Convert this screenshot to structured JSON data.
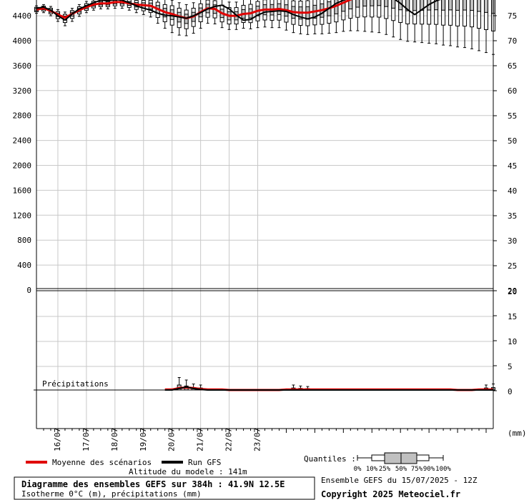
{
  "chart_data": {
    "type": "box",
    "title": "Diagramme des ensembles GEFS sur 384h : 41.9N 12.5E",
    "subtitle": "Isotherme 0°C (m), précipitations (mm)",
    "model_altitude": "Altitude du modele : 141m",
    "run_info": "Ensemble GEFS du 15/07/2025 - 12Z",
    "copyright": "Copyright 2025 Meteociel.fr",
    "precip_label": "Précipitations",
    "units_label": "(mm)",
    "x_dates": [
      "16/07",
      "17/07",
      "18/07",
      "19/07",
      "20/07",
      "21/07",
      "22/07",
      "23/07"
    ],
    "x_range": [
      0,
      384
    ],
    "left_ticks": [
      "4400",
      "4000",
      "3600",
      "3200",
      "2800",
      "2400",
      "2000",
      "1600",
      "1200",
      "800",
      "400",
      "0"
    ],
    "right_ticks_upper": [
      "75",
      "70",
      "65",
      "60",
      "55",
      "50",
      "45",
      "40",
      "35",
      "30",
      "25",
      "20"
    ],
    "right_ticks_lower": [
      "20",
      "15",
      "10",
      "5",
      "0"
    ],
    "freezing_level": {
      "hours": [
        0,
        6,
        12,
        18,
        24,
        30,
        36,
        42,
        48,
        54,
        60,
        66,
        72,
        78,
        84,
        90,
        96,
        102,
        108,
        114,
        120,
        126,
        132,
        138,
        144,
        150,
        156,
        162,
        168,
        174,
        180,
        186,
        192,
        198,
        204,
        210,
        216,
        222,
        228,
        234,
        240,
        246,
        252,
        258,
        264,
        270,
        276,
        282,
        288,
        294,
        300,
        306,
        312,
        318,
        324,
        330,
        336,
        342,
        348,
        354,
        360,
        366,
        372,
        378,
        384
      ],
      "mean": [
        4500,
        4520,
        4480,
        4420,
        4370,
        4430,
        4490,
        4540,
        4580,
        4600,
        4600,
        4620,
        4620,
        4600,
        4580,
        4570,
        4560,
        4510,
        4460,
        4430,
        4390,
        4360,
        4390,
        4460,
        4520,
        4510,
        4440,
        4400,
        4400,
        4430,
        4440,
        4480,
        4500,
        4500,
        4510,
        4490,
        4460,
        4450,
        4450,
        4470,
        4490,
        4520,
        4560,
        4610,
        4660,
        4700,
        4730,
        4740,
        4750,
        4740,
        4720,
        4700,
        4690,
        4700,
        4710,
        4720,
        4730,
        4730,
        4740,
        4740,
        4750,
        4750,
        4740,
        4730,
        4720
      ],
      "run": [
        4520,
        4540,
        4490,
        4400,
        4330,
        4430,
        4510,
        4560,
        4610,
        4650,
        4640,
        4660,
        4650,
        4610,
        4560,
        4520,
        4490,
        4440,
        4410,
        4400,
        4380,
        4360,
        4400,
        4450,
        4510,
        4550,
        4570,
        4510,
        4410,
        4330,
        4340,
        4410,
        4460,
        4470,
        4480,
        4470,
        4420,
        4380,
        4350,
        4380,
        4440,
        4520,
        4600,
        4650,
        4700,
        4730,
        4760,
        4780,
        4770,
        4730,
        4680,
        4600,
        4500,
        4420,
        4500,
        4580,
        4640,
        4680,
        4710,
        4730,
        4740,
        4750,
        4760,
        4750,
        4740
      ],
      "spread_low": [
        60,
        70,
        80,
        110,
        130,
        120,
        100,
        90,
        90,
        90,
        90,
        100,
        100,
        110,
        130,
        150,
        180,
        230,
        260,
        300,
        300,
        280,
        270,
        260,
        240,
        240,
        230,
        220,
        220,
        230,
        250,
        270,
        280,
        290,
        300,
        320,
        330,
        340,
        350,
        360,
        380,
        400,
        430,
        460,
        500,
        540,
        580,
        600,
        620,
        640,
        660,
        680,
        700,
        720,
        740,
        760,
        780,
        800,
        820,
        840,
        860,
        880,
        900,
        920,
        940
      ],
      "spread_high": [
        60,
        60,
        70,
        80,
        90,
        90,
        90,
        90,
        90,
        90,
        90,
        90,
        90,
        100,
        110,
        130,
        150,
        180,
        200,
        220,
        220,
        220,
        220,
        220,
        220,
        220,
        220,
        220,
        220,
        230,
        240,
        250,
        260,
        270,
        280,
        290,
        300,
        310,
        320,
        330,
        340,
        350,
        360,
        370,
        380,
        390,
        400,
        410,
        420,
        430,
        440,
        450,
        460,
        470,
        480,
        490,
        500,
        510,
        520,
        530,
        540,
        550,
        560,
        570,
        580
      ]
    },
    "precipitation": {
      "hours": [
        108,
        114,
        120,
        126,
        132,
        138,
        144,
        150,
        156,
        162,
        168,
        174,
        180,
        186,
        192,
        198,
        204,
        210,
        216,
        222,
        228,
        234,
        240,
        246,
        252,
        258,
        264,
        270,
        276,
        282,
        288,
        294,
        300,
        306,
        312,
        318,
        324,
        330,
        336,
        342,
        348,
        354,
        360,
        366,
        372,
        378,
        384
      ],
      "mean": [
        0.1,
        0.1,
        0.4,
        0.5,
        0.4,
        0.2,
        0.1,
        0.1,
        0.1,
        0,
        0,
        0,
        0,
        0,
        0,
        0,
        0,
        0.1,
        0.1,
        0.1,
        0.1,
        0.1,
        0.1,
        0.1,
        0.1,
        0.1,
        0.1,
        0.1,
        0.1,
        0.1,
        0.1,
        0.1,
        0.1,
        0.1,
        0.1,
        0.1,
        0.1,
        0.1,
        0.1,
        0.1,
        0.1,
        0,
        0,
        0,
        0.1,
        0.1,
        0.1
      ],
      "run": [
        0,
        0,
        0.3,
        0.6,
        0.3,
        0.1,
        0,
        0,
        0,
        0,
        0,
        0,
        0,
        0,
        0,
        0,
        0,
        0,
        0,
        0,
        0,
        0,
        0,
        0,
        0,
        0,
        0,
        0,
        0,
        0,
        0,
        0,
        0,
        0,
        0,
        0,
        0,
        0,
        0,
        0,
        0,
        0,
        0,
        0,
        0,
        0,
        0
      ],
      "max": [
        0.3,
        0.4,
        2.5,
        2.0,
        1.2,
        1.0,
        0.3,
        0.2,
        0.2,
        0,
        0,
        0,
        0,
        0,
        0,
        0,
        0.3,
        0.5,
        1.0,
        0.8,
        0.7,
        0.5,
        0.3,
        0.2,
        0.2,
        0.2,
        0.2,
        0.2,
        0.2,
        0.2,
        0.3,
        0.3,
        0.5,
        0.3,
        0.2,
        0.2,
        0.2,
        0.2,
        0.2,
        0.2,
        0.2,
        0,
        0,
        0,
        0.5,
        1.0,
        1.2
      ]
    },
    "legend": {
      "mean_label": "Moyenne des scénarios",
      "run_label": "Run GFS",
      "quantiles_label": "Quantiles :",
      "quantile_ticks": [
        "0%",
        "10%",
        "25%",
        "50%",
        "75%",
        "90%",
        "100%"
      ],
      "mean_color": "#e00000",
      "run_color": "#000000"
    }
  }
}
